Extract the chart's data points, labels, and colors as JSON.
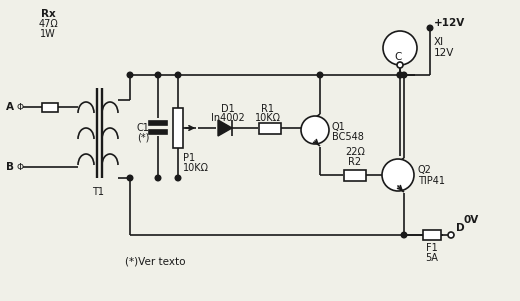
{
  "bg_color": "#f0f0e8",
  "lc": "#1a1a1a",
  "lw": 1.2,
  "labels": {
    "Rx": "Rx",
    "47ohm": "47Ω",
    "1W": "1W",
    "A": "A",
    "B": "B",
    "T1": "T1",
    "C1": "C1",
    "star": "(*)",
    "P1": "P1",
    "P1val": "10KΩ",
    "D1": "D1",
    "D1val": "In4002",
    "R1": "R1",
    "R1val": "10KΩ",
    "Q1": "Q1",
    "Q1val": "BC548",
    "R2": "R2",
    "R2val": "22Ω",
    "Q2": "Q2",
    "Q2val": "TIP41",
    "C": "C",
    "plus12V": "+12V",
    "XI": "Xl",
    "XI12V": "12V",
    "F1": "F1",
    "F1val": "5A",
    "D_label": "D",
    "zeroV": "0V",
    "footnote": "(*)Ver texto"
  }
}
